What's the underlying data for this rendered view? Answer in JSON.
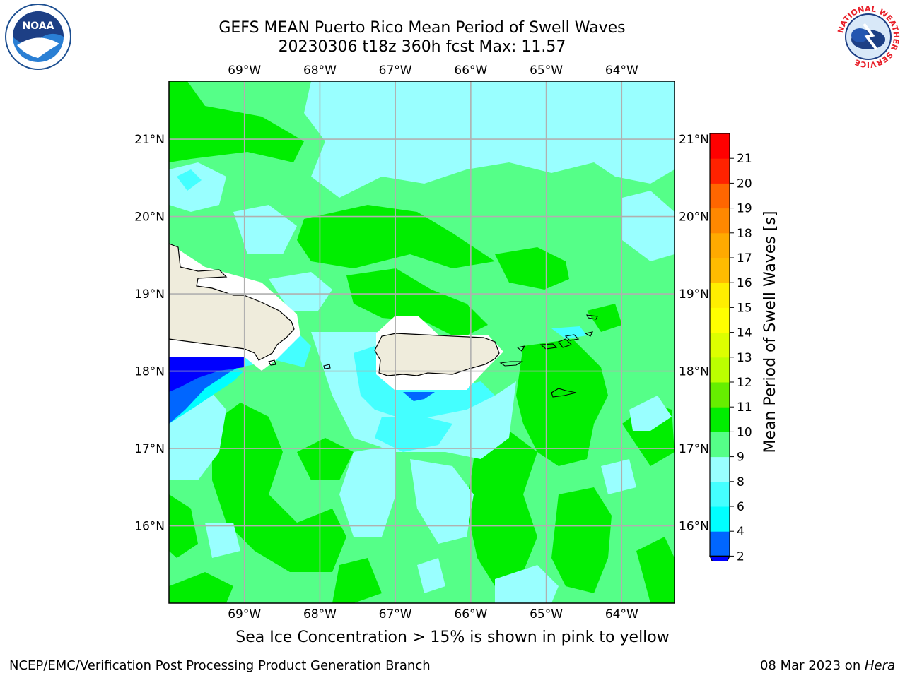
{
  "header": {
    "title_line1": "GEFS MEAN Puerto Rico Mean Period of Swell Waves",
    "title_line2": "20230306 t18z 360h fcst   Max: 11.57"
  },
  "map": {
    "lon_labels": [
      "69°W",
      "68°W",
      "67°W",
      "66°W",
      "65°W",
      "64°W"
    ],
    "lat_labels": [
      "21°N",
      "20°N",
      "19°N",
      "18°N",
      "17°N",
      "16°N"
    ],
    "lon_values": [
      -69,
      -68,
      -67,
      -66,
      -65,
      -64
    ],
    "lat_values": [
      21,
      20,
      19,
      18,
      17,
      16
    ],
    "lon_range": [
      -70,
      -63.3
    ],
    "lat_range": [
      15,
      21.75
    ],
    "land_color": "#efecdc",
    "ocean_dominant_color": "#55ff88"
  },
  "colorbar": {
    "label": "Mean Period of Swell Waves [s]",
    "ticks": [
      "2",
      "4",
      "6",
      "8",
      "9",
      "10",
      "11",
      "12",
      "13",
      "14",
      "15",
      "16",
      "17",
      "18",
      "19",
      "20",
      "21"
    ],
    "colors": [
      "#0066ff",
      "#00ffff",
      "#44ffff",
      "#99ffff",
      "#55ff88",
      "#00ee00",
      "#66ee00",
      "#bbff00",
      "#ddff00",
      "#ffff00",
      "#ffee00",
      "#ffbb00",
      "#ffaa00",
      "#ff8800",
      "#ff6600",
      "#ff2200",
      "#ff0000"
    ],
    "extend_color": "#0000ff"
  },
  "logos": {
    "noaa_text": "NOAA",
    "nws_text": "NATIONAL WEATHER SERVICE"
  },
  "subtitle": "Sea Ice Concentration > 15% is shown in pink to yellow",
  "footer": {
    "left": "NCEP/EMC/Verification Post Processing Product Generation Branch",
    "right_date": "08 Mar 2023 on ",
    "right_host": "Hera"
  }
}
